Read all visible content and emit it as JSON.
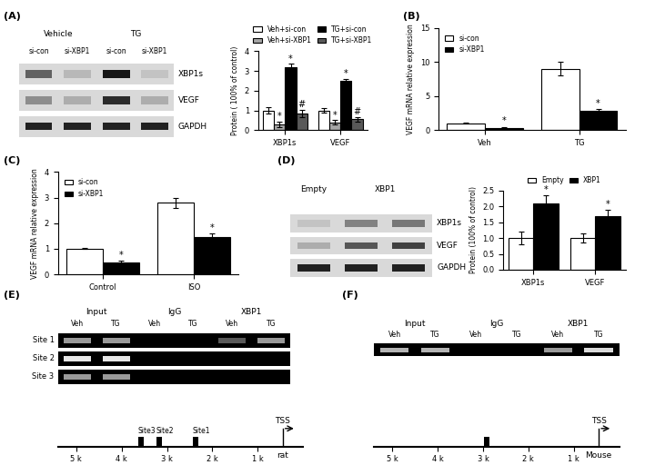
{
  "chart_data": [
    {
      "type": "bar",
      "y_label": "Protein ( 100% of control)",
      "categories": [
        "XBP1s",
        "VEGF"
      ],
      "series": [
        {
          "name": "Veh+si-con",
          "color": "#ffffff",
          "values": [
            1.0,
            1.0
          ],
          "errors": [
            0.15,
            0.1
          ],
          "marks": [
            null,
            null
          ]
        },
        {
          "name": "Veh+si-XBP1",
          "color": "#a6a6a6",
          "values": [
            0.3,
            0.4
          ],
          "errors": [
            0.15,
            0.1
          ],
          "marks": [
            "*",
            "*"
          ]
        },
        {
          "name": "TG+si-con",
          "color": "#000000",
          "values": [
            3.2,
            2.5
          ],
          "errors": [
            0.15,
            0.1
          ],
          "marks": [
            "*",
            "*"
          ]
        },
        {
          "name": "TG+si-XBP1",
          "color": "#595959",
          "values": [
            0.85,
            0.55
          ],
          "errors": [
            0.2,
            0.1
          ],
          "marks": [
            "#",
            "#"
          ]
        }
      ],
      "ylim": [
        0,
        4
      ],
      "yticks": [
        0,
        1,
        2,
        3,
        4
      ],
      "legend": "top"
    },
    {
      "type": "bar",
      "y_label": "VEGF mRNA relative expression",
      "categories": [
        "Veh",
        "TG"
      ],
      "series": [
        {
          "name": "si-con",
          "color": "#ffffff",
          "values": [
            1.0,
            9.0
          ],
          "errors": [
            0.05,
            1.0
          ],
          "marks": [
            null,
            null
          ]
        },
        {
          "name": "si-XBP1",
          "color": "#000000",
          "values": [
            0.35,
            2.8
          ],
          "errors": [
            0.15,
            0.35
          ],
          "marks": [
            "*",
            "*"
          ]
        }
      ],
      "ylim": [
        0,
        15
      ],
      "yticks": [
        0,
        5,
        10,
        15
      ],
      "legend": "upper left"
    },
    {
      "type": "bar",
      "y_label": "VEGF mRNA relative expression",
      "categories": [
        "Control",
        "ISO"
      ],
      "series": [
        {
          "name": "si-con",
          "color": "#ffffff",
          "values": [
            1.0,
            2.8
          ],
          "errors": [
            0.02,
            0.2
          ],
          "marks": [
            null,
            null
          ]
        },
        {
          "name": "si-XBP1",
          "color": "#000000",
          "values": [
            0.48,
            1.45
          ],
          "errors": [
            0.05,
            0.15
          ],
          "marks": [
            "*",
            "*"
          ]
        }
      ],
      "ylim": [
        0,
        4
      ],
      "yticks": [
        0,
        1,
        2,
        3,
        4
      ],
      "legend": "upper left"
    },
    {
      "type": "bar",
      "y_label": "Protein (100% of control)",
      "categories": [
        "XBP1s",
        "VEGF"
      ],
      "series": [
        {
          "name": "Empty",
          "color": "#ffffff",
          "values": [
            1.0,
            1.0
          ],
          "errors": [
            0.2,
            0.15
          ],
          "marks": [
            null,
            null
          ]
        },
        {
          "name": "XBP1",
          "color": "#000000",
          "values": [
            2.1,
            1.7
          ],
          "errors": [
            0.25,
            0.2
          ],
          "marks": [
            "*",
            "*"
          ]
        }
      ],
      "ylim": [
        0,
        2.5
      ],
      "yticks": [
        {
          "value": 0,
          "label": "0.0"
        },
        {
          "value": 0.5,
          "label": "0.5"
        },
        {
          "value": 1,
          "label": "1.0"
        },
        {
          "value": 1.5,
          "label": "1.5"
        },
        {
          "value": 2,
          "label": "2.0"
        },
        {
          "value": 2.5,
          "label": "2.5"
        }
      ],
      "legend": "top"
    }
  ],
  "blots": [
    {
      "groups": [
        {
          "label": "Vehicle",
          "lanes": [
            "si-con",
            "si-XBP1"
          ]
        },
        {
          "label": "TG",
          "lanes": [
            "si-con",
            "si-XBP1"
          ]
        }
      ],
      "rows": [
        {
          "label": "XBP1s",
          "bands": [
            0.55,
            0.15,
            0.9,
            0.1
          ]
        },
        {
          "label": "VEGF",
          "bands": [
            0.35,
            0.2,
            0.8,
            0.2
          ]
        },
        {
          "label": "GAPDH",
          "bands": [
            0.85,
            0.85,
            0.85,
            0.85
          ]
        }
      ]
    },
    {
      "groups": [
        {
          "label": "Empty",
          "lanes": [
            null
          ]
        },
        {
          "label": "XBP1",
          "lanes": [
            null,
            null
          ]
        }
      ],
      "rows": [
        {
          "label": "XBP1s",
          "bands": [
            0.1,
            0.4,
            0.45
          ]
        },
        {
          "label": "VEGF",
          "bands": [
            0.2,
            0.6,
            0.7
          ]
        },
        {
          "label": "GAPDH",
          "bands": [
            0.85,
            0.85,
            0.85
          ]
        }
      ]
    }
  ],
  "gels": [
    {
      "groups": [
        {
          "label": "Input",
          "lanes": [
            "Veh",
            "TG"
          ]
        },
        {
          "label": "IgG",
          "lanes": [
            "Veh",
            "TG"
          ]
        },
        {
          "label": "XBP1",
          "lanes": [
            "Veh",
            "TG"
          ]
        }
      ],
      "rows": [
        {
          "label": "Site 1",
          "bands": [
            0.6,
            0.6,
            0,
            0,
            0.35,
            0.6
          ]
        },
        {
          "label": "Site 2",
          "bands": [
            0.9,
            0.9,
            0,
            0,
            0,
            0
          ]
        },
        {
          "label": "Site 3",
          "bands": [
            0.6,
            0.6,
            0,
            0,
            0,
            0
          ]
        }
      ]
    },
    {
      "groups": [
        {
          "label": "Input",
          "lanes": [
            "Veh",
            "TG"
          ]
        },
        {
          "label": "IgG",
          "lanes": [
            "Veh",
            "TG"
          ]
        },
        {
          "label": "XBP1",
          "lanes": [
            "Veh",
            "TG"
          ]
        }
      ],
      "rows": [
        {
          "label": null,
          "bands": [
            0.7,
            0.7,
            0,
            0,
            0.6,
            0.85
          ]
        }
      ]
    }
  ],
  "maps": [
    {
      "xlim": [
        5.4,
        0
      ],
      "xticks": [
        {
          "value": 5,
          "label": "5 k"
        },
        {
          "value": 4,
          "label": "4 k"
        },
        {
          "value": 3,
          "label": "3 k"
        },
        {
          "value": 2,
          "label": "2 k"
        },
        {
          "value": 1,
          "label": "1 k"
        }
      ],
      "sites": [
        {
          "label": "Site3",
          "position": 3.45
        },
        {
          "label": "Site2",
          "position": 3.05
        },
        {
          "label": "Site1",
          "position": 2.25
        }
      ],
      "tss": {
        "label": "TSS",
        "position": 0.45
      },
      "species": "rat"
    },
    {
      "xlim": [
        5.4,
        0
      ],
      "xticks": [
        {
          "value": 5,
          "label": "5 k"
        },
        {
          "value": 4,
          "label": "4 k"
        },
        {
          "value": 3,
          "label": "3 k"
        },
        {
          "value": 2,
          "label": "2 k"
        },
        {
          "value": 1,
          "label": "1 k"
        }
      ],
      "sites": [
        {
          "label": null,
          "position": 2.8
        }
      ],
      "tss": {
        "label": "TSS",
        "position": 0.45
      },
      "species": "Mouse"
    }
  ],
  "panel_labels": [
    "(A)",
    "(B)",
    "(C)",
    "(D)",
    "(E)",
    "(F)"
  ]
}
